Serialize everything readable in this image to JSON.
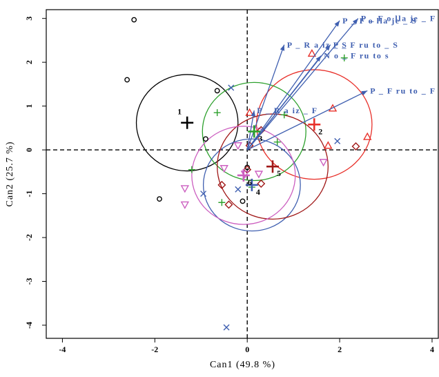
{
  "chart_data": {
    "type": "scatter",
    "xlabel": "Can1 (49.8 %)",
    "ylabel": "Can2 (25.7 %)",
    "xlim": [
      -4.35,
      4.15
    ],
    "ylim": [
      -4.3,
      3.2
    ],
    "xticks": [
      -4,
      -2,
      0,
      2,
      4
    ],
    "yticks": [
      -4,
      -3,
      -2,
      -1,
      0,
      1,
      2,
      3
    ],
    "reference_lines": {
      "x": 0,
      "y": 0,
      "style": "dashed"
    },
    "groups": [
      {
        "id": "1",
        "color": "#000000",
        "marker": "circle",
        "center": [
          -1.3,
          0.62
        ],
        "radius": 1.1,
        "points": [
          [
            -2.45,
            2.97
          ],
          [
            -2.6,
            1.6
          ],
          [
            -0.65,
            1.35
          ],
          [
            -0.9,
            0.25
          ],
          [
            -1.9,
            -1.12
          ],
          [
            0.0,
            -0.4
          ],
          [
            -0.1,
            -1.17
          ]
        ]
      },
      {
        "id": "2",
        "color": "#e8302a",
        "marker": "triangle",
        "center": [
          1.45,
          0.58
        ],
        "radius": 1.25,
        "points": [
          [
            1.4,
            2.2
          ],
          [
            1.85,
            0.95
          ],
          [
            2.6,
            0.3
          ],
          [
            1.75,
            0.1
          ],
          [
            0.05,
            0.85
          ]
        ]
      },
      {
        "id": "3",
        "color": "#2ca02c",
        "marker": "plus",
        "center": [
          0.15,
          0.42
        ],
        "radius": 1.12,
        "points": [
          [
            2.1,
            2.1
          ],
          [
            -0.65,
            0.85
          ],
          [
            0.8,
            0.8
          ],
          [
            0.65,
            0.18
          ],
          [
            -1.2,
            -0.45
          ],
          [
            -0.55,
            -1.2
          ],
          [
            0.1,
            -0.85
          ]
        ]
      },
      {
        "id": "4",
        "color": "#3f5fb0",
        "marker": "cross",
        "center": [
          0.1,
          -0.8
        ],
        "radius": 1.05,
        "points": [
          [
            -0.35,
            1.42
          ],
          [
            1.95,
            0.2
          ],
          [
            -0.95,
            -1.0
          ],
          [
            -0.2,
            -0.9
          ],
          [
            -0.45,
            -4.05
          ]
        ]
      },
      {
        "id": "5",
        "color": "#a01818",
        "marker": "diamond",
        "center": [
          0.55,
          -0.38
        ],
        "radius": 1.2,
        "points": [
          [
            2.35,
            0.08
          ],
          [
            0.3,
            0.45
          ],
          [
            0.05,
            0.1
          ],
          [
            0.0,
            -0.45
          ],
          [
            -0.55,
            -0.8
          ],
          [
            0.3,
            -0.77
          ],
          [
            -0.4,
            -1.25
          ]
        ]
      },
      {
        "id": "6",
        "color": "#cc5fc0",
        "marker": "triangle-down",
        "center": [
          -0.08,
          -0.58
        ],
        "radius": 1.12,
        "points": [
          [
            -0.2,
            0.1
          ],
          [
            1.65,
            -0.28
          ],
          [
            -1.35,
            -0.88
          ],
          [
            -1.35,
            -1.25
          ],
          [
            -0.5,
            -0.42
          ],
          [
            0.25,
            -0.55
          ],
          [
            -0.05,
            -0.55
          ]
        ]
      }
    ],
    "vectors": [
      {
        "label": "P _ F o lla je _ F",
        "to": [
          2.4,
          3.0
        ]
      },
      {
        "label": "P _ F o lla je _ S",
        "to": [
          2.0,
          2.95
        ]
      },
      {
        "label": "P _ R a iz _ S",
        "to": [
          0.8,
          2.4
        ]
      },
      {
        "label": "P _ F ru to _ S",
        "to": [
          1.8,
          2.4
        ]
      },
      {
        "label": "N o _ F ru to s",
        "to": [
          1.6,
          2.15
        ]
      },
      {
        "label": "P _ F ru to _ F",
        "to": [
          2.6,
          1.35
        ]
      },
      {
        "label": "P _ R a iz _ F",
        "to": [
          0.15,
          0.9
        ]
      }
    ],
    "vector_color": "#3f5fb0"
  }
}
